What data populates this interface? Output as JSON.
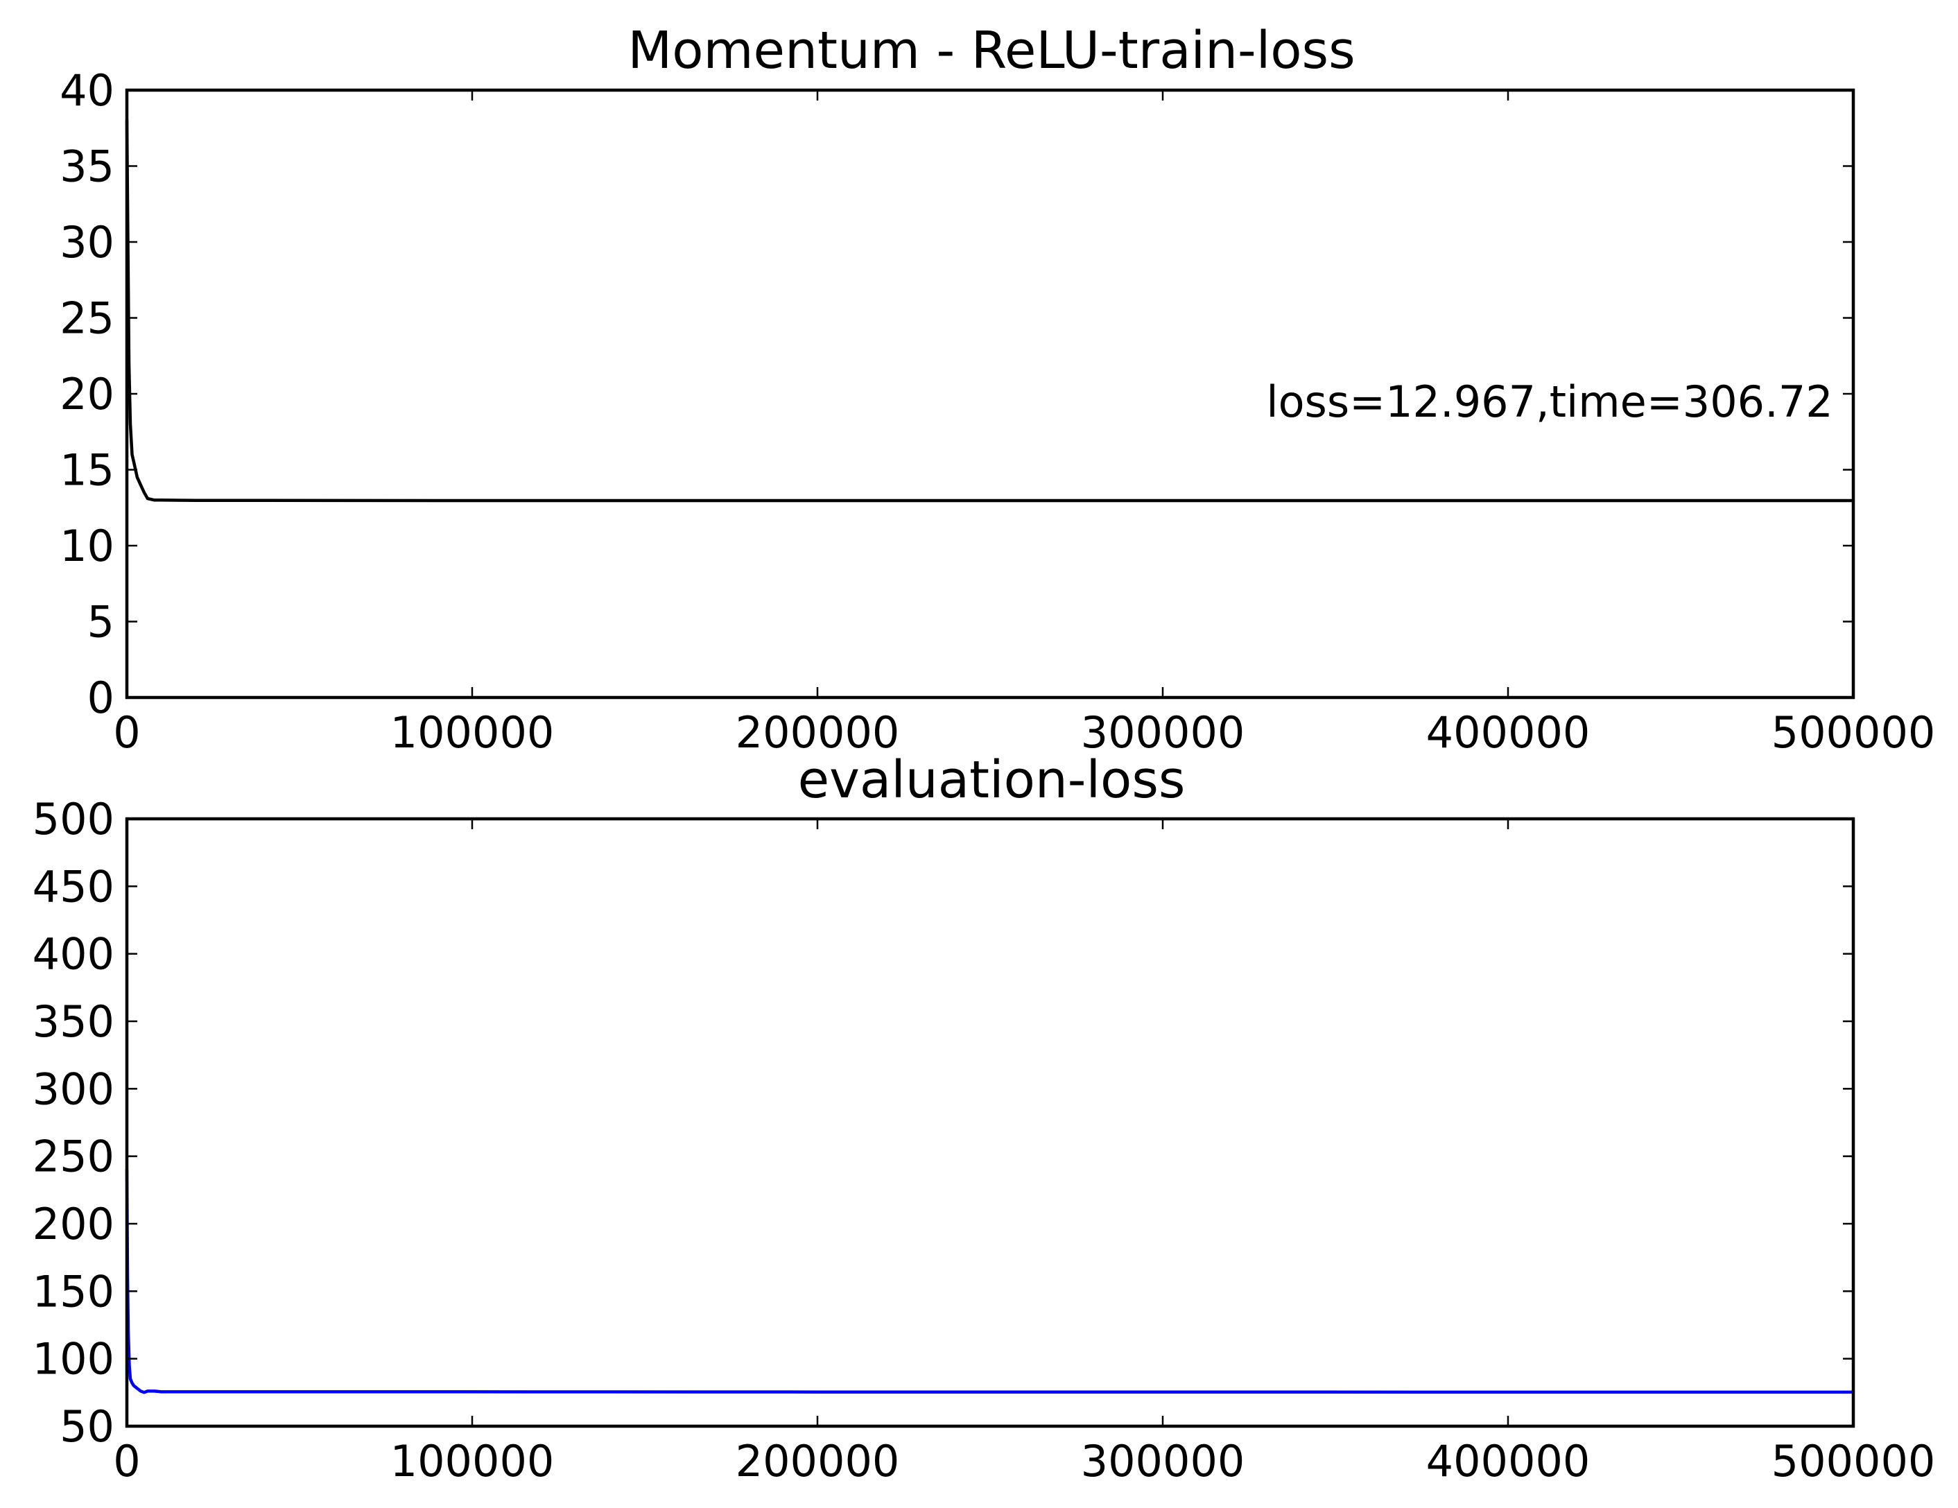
{
  "chart_data": [
    {
      "type": "line",
      "title": "Momentum - ReLU-train-loss",
      "xlabel": "",
      "ylabel": "",
      "xlim": [
        0,
        500000
      ],
      "ylim": [
        0,
        40
      ],
      "x_ticks": [
        "0",
        "100000",
        "200000",
        "300000",
        "400000",
        "500000"
      ],
      "y_ticks": [
        "0",
        "5",
        "10",
        "15",
        "20",
        "25",
        "30",
        "35",
        "40"
      ],
      "grid": false,
      "annotation": {
        "text": "loss=12.967,time=306.72",
        "x": 330000,
        "y": 19.5
      },
      "series": [
        {
          "color": "#000000",
          "x": [
            0,
            300,
            600,
            1000,
            1500,
            2000,
            3000,
            4000,
            5000,
            6000,
            8000,
            10000,
            20000,
            100000,
            200000,
            300000,
            400000,
            500000
          ],
          "y": [
            38,
            30,
            22,
            18,
            16,
            15.5,
            14.5,
            14,
            13.5,
            13.1,
            13.0,
            13.0,
            12.98,
            12.97,
            12.97,
            12.967,
            12.967,
            12.967
          ]
        }
      ]
    },
    {
      "type": "line",
      "title": "evaluation-loss",
      "xlabel": "",
      "ylabel": "",
      "xlim": [
        0,
        500000
      ],
      "ylim": [
        50,
        500
      ],
      "x_ticks": [
        "0",
        "100000",
        "200000",
        "300000",
        "400000",
        "500000"
      ],
      "y_ticks": [
        "50",
        "100",
        "150",
        "200",
        "250",
        "300",
        "350",
        "400",
        "450",
        "500"
      ],
      "grid": false,
      "series": [
        {
          "color": "#0000ff",
          "x": [
            0,
            200,
            400,
            700,
            1000,
            1500,
            2000,
            3000,
            4000,
            5000,
            6000,
            8000,
            10000,
            50000,
            100000,
            200000,
            300000,
            400000,
            500000
          ],
          "y": [
            240,
            160,
            120,
            95,
            85,
            82,
            80,
            78,
            76,
            75,
            76,
            76,
            75.5,
            75.5,
            75.5,
            75.3,
            75.3,
            75.2,
            75.2
          ]
        }
      ]
    }
  ]
}
